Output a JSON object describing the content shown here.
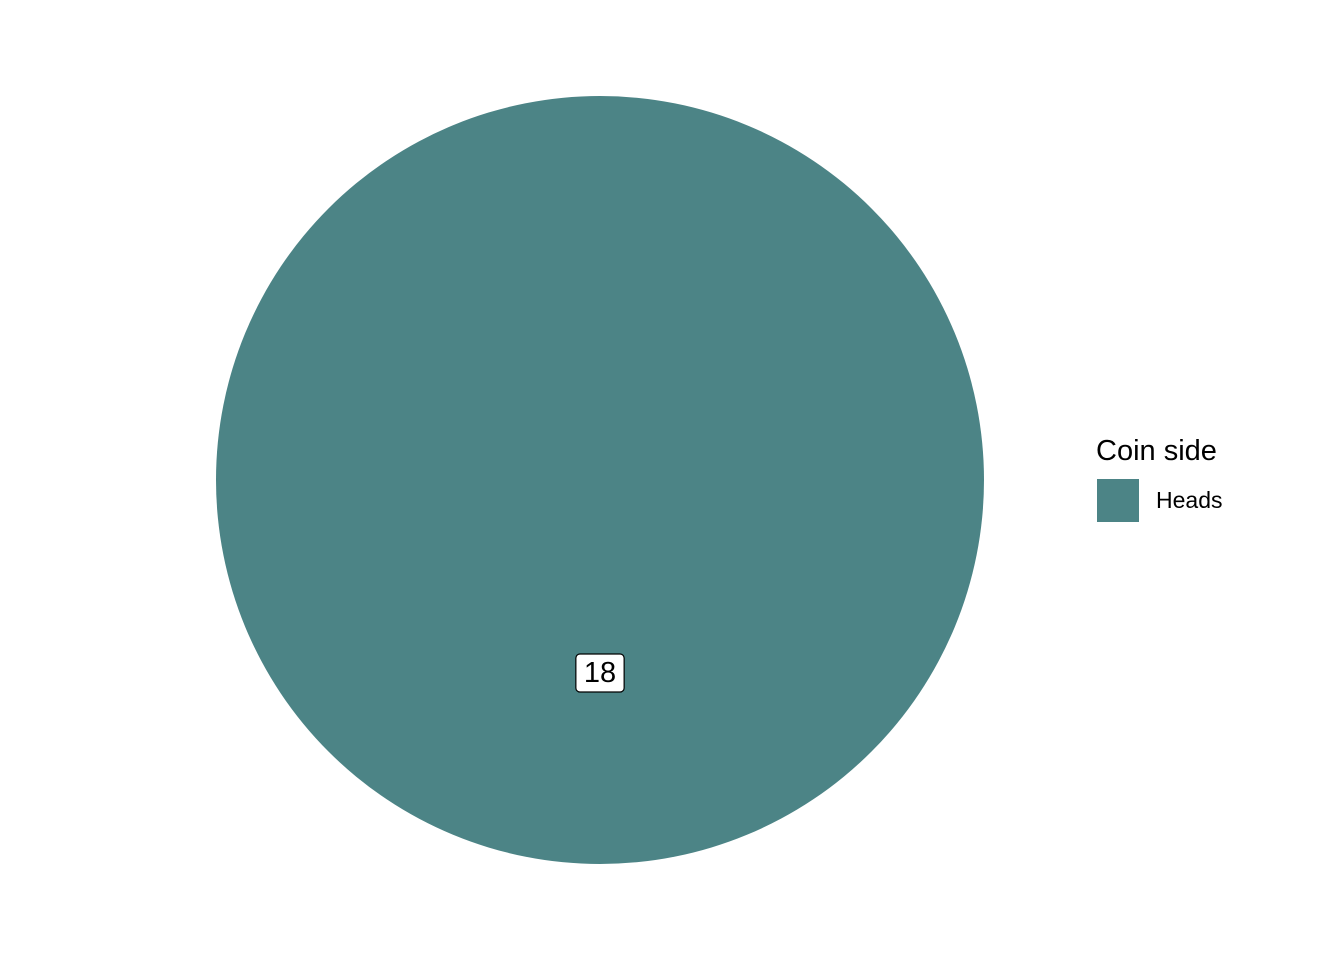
{
  "chart_data": {
    "type": "pie",
    "categories": [
      "Heads"
    ],
    "values": [
      18
    ],
    "data_labels": [
      "18"
    ],
    "colors": [
      "#4c8486"
    ],
    "legend": {
      "title": "Coin side",
      "position": "right",
      "entries": [
        "Heads"
      ]
    },
    "title": "",
    "xlabel": "",
    "ylabel": ""
  }
}
